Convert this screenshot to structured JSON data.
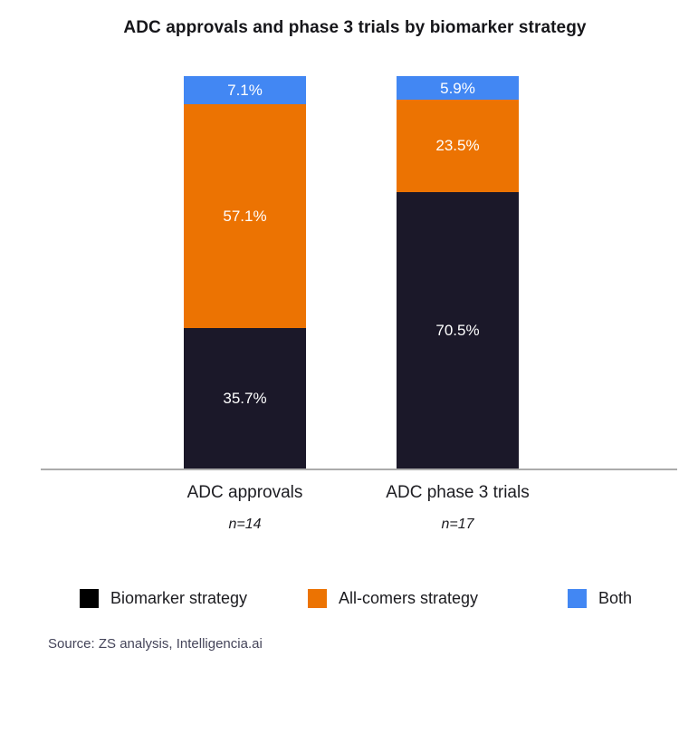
{
  "title": "ADC approvals and phase 3 trials by biomarker strategy",
  "chart_data": {
    "type": "bar",
    "variant": "stacked-100-percent",
    "title": "ADC approvals and phase 3 trials by biomarker strategy",
    "categories": [
      "ADC approvals",
      "ADC phase 3 trials"
    ],
    "category_sample_sizes": [
      "n=14",
      "n=17"
    ],
    "series": [
      {
        "name": "Biomarker strategy",
        "color": "#1b1829",
        "values": [
          35.7,
          70.5
        ]
      },
      {
        "name": "All-comers strategy",
        "color": "#ec7302",
        "values": [
          57.1,
          23.5
        ]
      },
      {
        "name": "Both",
        "color": "#4287f3",
        "values": [
          7.1,
          5.9
        ]
      }
    ],
    "value_labels": [
      [
        "35.7%",
        "57.1%",
        "7.1%"
      ],
      [
        "70.5%",
        "23.5%",
        "5.9%"
      ]
    ],
    "ylim": [
      0,
      100
    ],
    "grid": false,
    "x_axis_line": true,
    "legend_position": "bottom"
  },
  "legend": {
    "items": [
      {
        "label": "Biomarker strategy",
        "color": "#000000"
      },
      {
        "label": "All-comers strategy",
        "color": "#ec7302"
      },
      {
        "label": "Both",
        "color": "#4287f3"
      }
    ]
  },
  "source": "Source: ZS analysis, Intelligencia.ai"
}
